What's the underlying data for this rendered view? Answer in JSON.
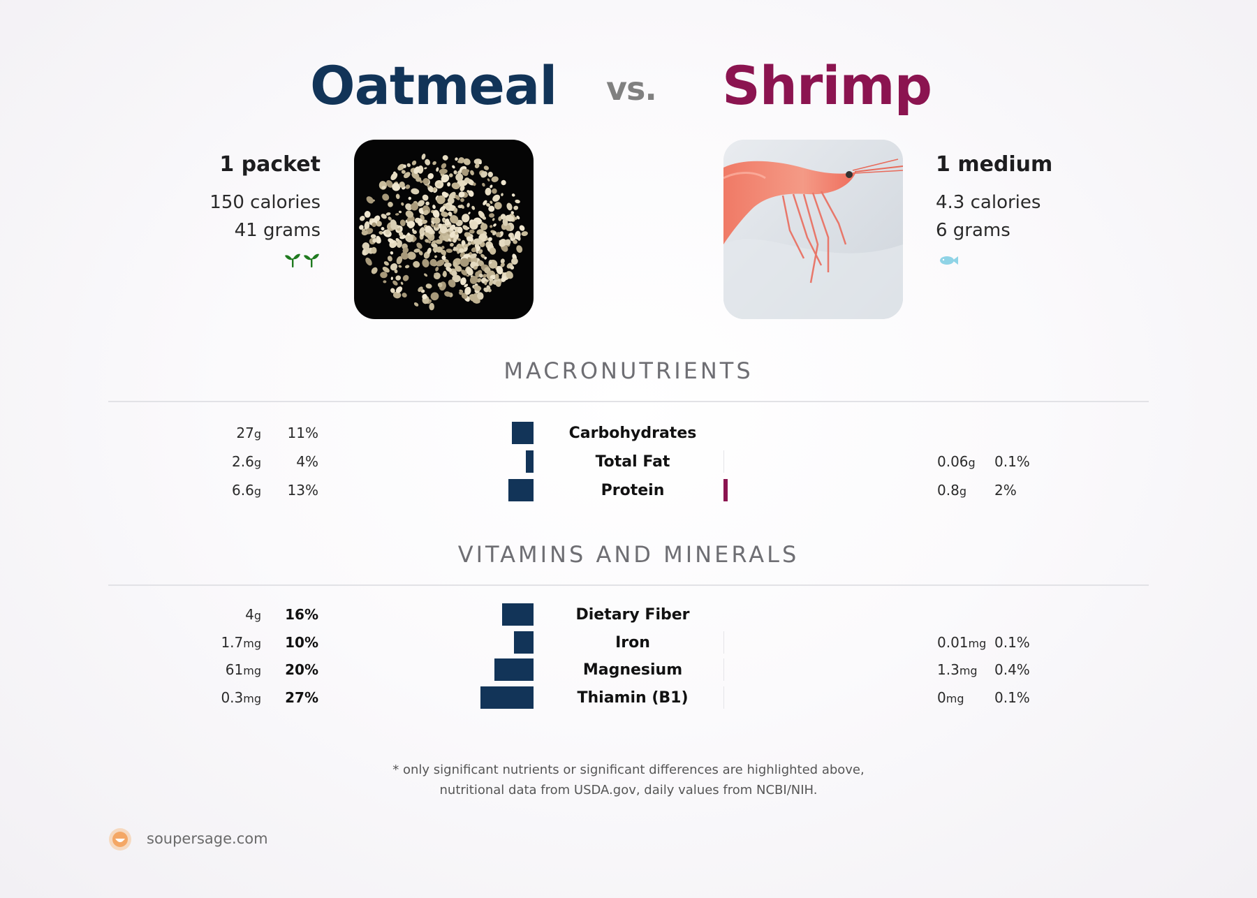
{
  "header": {
    "left_title": "Oatmeal",
    "vs": "vs.",
    "right_title": "Shrimp"
  },
  "left_food": {
    "serving": "1 packet",
    "calories": "150 calories",
    "grams": "41 grams",
    "diet_icon": "vegan-sprouts-icon",
    "diet_color": "#1f7a1f"
  },
  "right_food": {
    "serving": "1 medium",
    "calories": "4.3 calories",
    "grams": "6 grams",
    "diet_icon": "fish-icon",
    "diet_color": "#8fd3e6"
  },
  "sections": {
    "macros_title": "MACRONUTRIENTS",
    "vitamins_title": "VITAMINS AND MINERALS"
  },
  "colors": {
    "left_accent": "#123458",
    "right_accent": "#8b1450"
  },
  "chart_data": {
    "type": "bar",
    "series": [
      {
        "name": "Oatmeal"
      },
      {
        "name": "Shrimp"
      }
    ],
    "macros": [
      {
        "name": "Carbohydrates",
        "left_val": "27",
        "left_unit": "g",
        "left_pct": "11%",
        "left_pct_num": 11,
        "right_val": "",
        "right_unit": "",
        "right_pct": "",
        "right_pct_num": 0
      },
      {
        "name": "Total Fat",
        "left_val": "2.6",
        "left_unit": "g",
        "left_pct": "4%",
        "left_pct_num": 4,
        "right_val": "0.06",
        "right_unit": "g",
        "right_pct": "0.1%",
        "right_pct_num": 0.1
      },
      {
        "name": "Protein",
        "left_val": "6.6",
        "left_unit": "g",
        "left_pct": "13%",
        "left_pct_num": 13,
        "right_val": "0.8",
        "right_unit": "g",
        "right_pct": "2%",
        "right_pct_num": 2
      }
    ],
    "vitamins": [
      {
        "name": "Dietary Fiber",
        "left_val": "4",
        "left_unit": "g",
        "left_pct": "16%",
        "left_pct_num": 16,
        "right_val": "",
        "right_unit": "",
        "right_pct": "",
        "right_pct_num": 0
      },
      {
        "name": "Iron",
        "left_val": "1.7",
        "left_unit": "mg",
        "left_pct": "10%",
        "left_pct_num": 10,
        "right_val": "0.01",
        "right_unit": "mg",
        "right_pct": "0.1%",
        "right_pct_num": 0.1
      },
      {
        "name": "Magnesium",
        "left_val": "61",
        "left_unit": "mg",
        "left_pct": "20%",
        "left_pct_num": 20,
        "right_val": "1.3",
        "right_unit": "mg",
        "right_pct": "0.4%",
        "right_pct_num": 0.4
      },
      {
        "name": "Thiamin (B1)",
        "left_val": "0.3",
        "left_unit": "mg",
        "left_pct": "27%",
        "left_pct_num": 27,
        "right_val": "0",
        "right_unit": "mg",
        "right_pct": "0.1%",
        "right_pct_num": 0.1
      }
    ]
  },
  "footer": {
    "note_line1": "* only significant nutrients or significant differences are highlighted above,",
    "note_line2": "nutritional data from USDA.gov, daily values from NCBI/NIH.",
    "brand": "soupersage.com"
  }
}
